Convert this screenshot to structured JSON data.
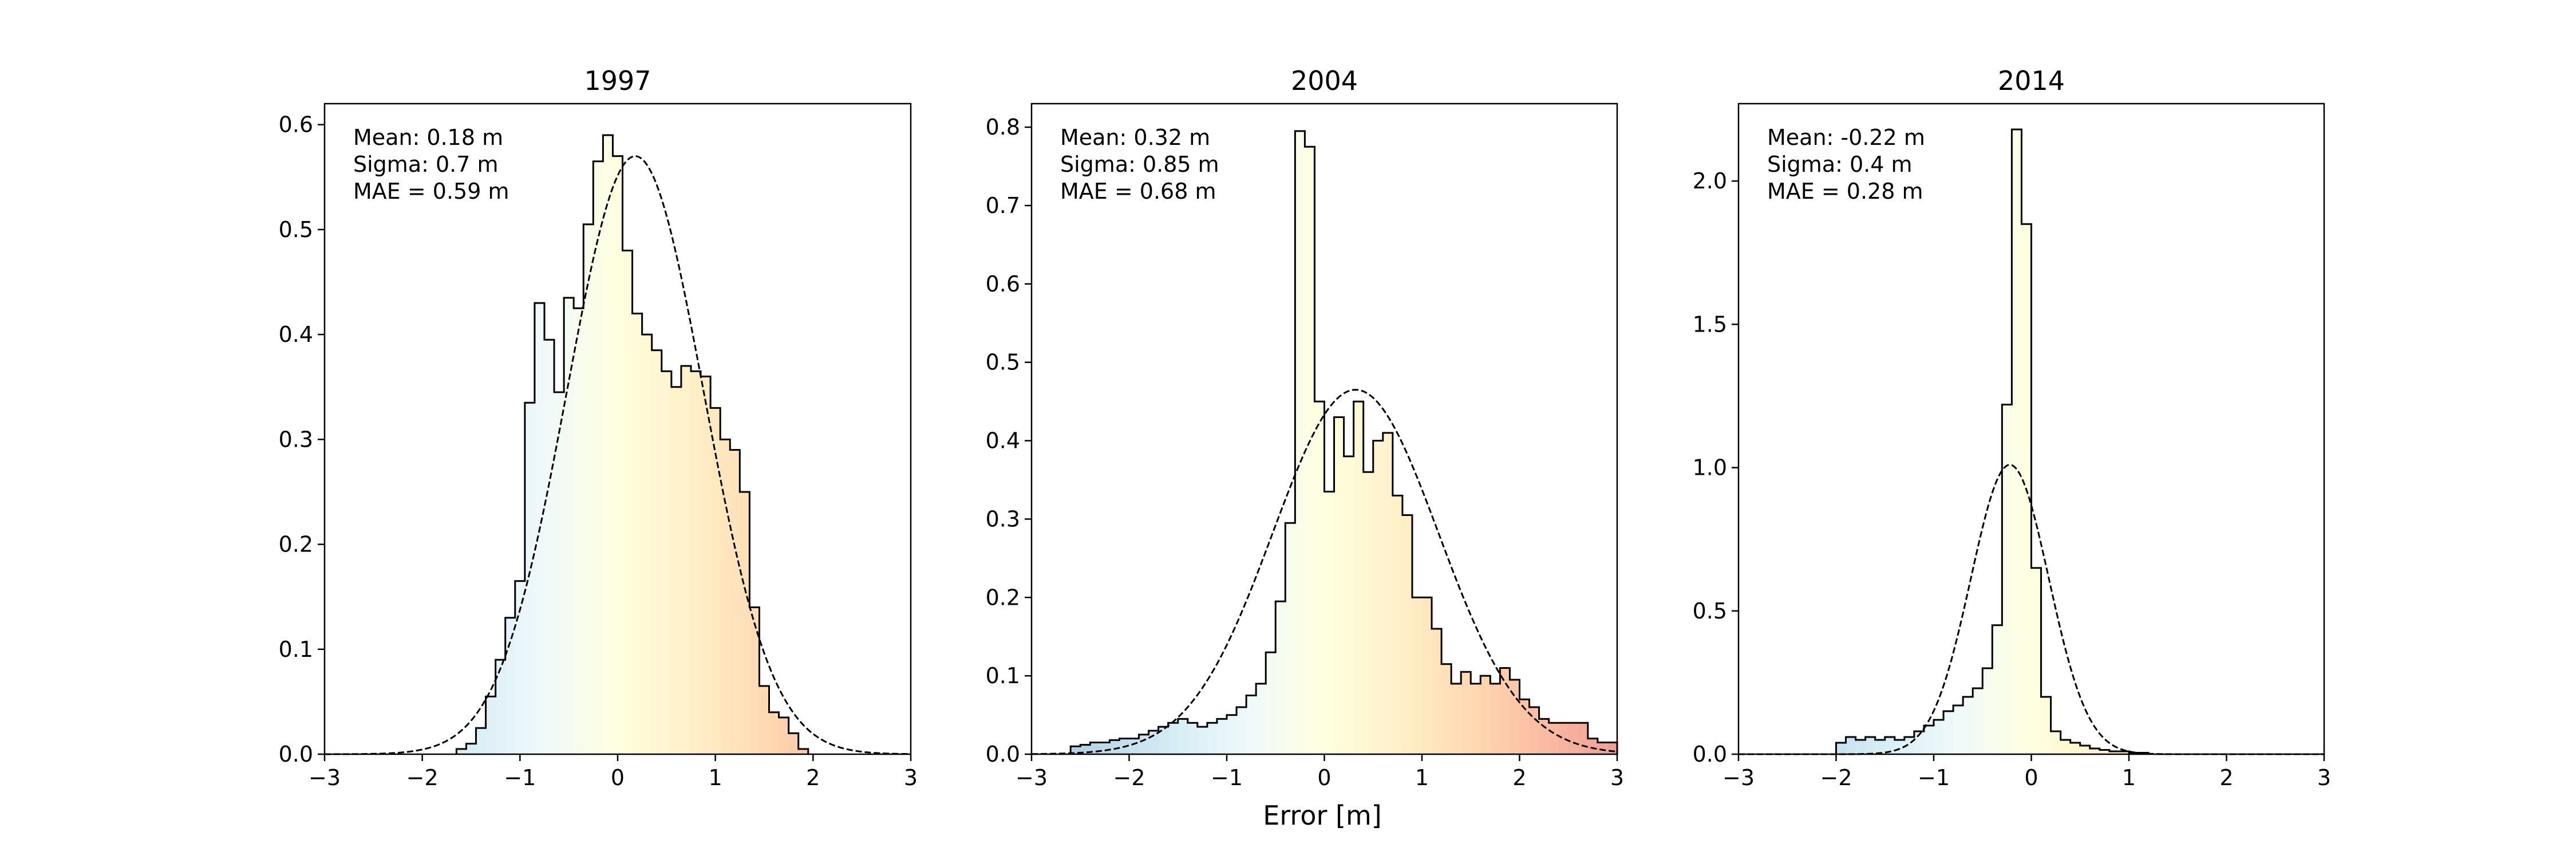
{
  "chart_data": {
    "type": "histogram",
    "xlabel": "Error [m]",
    "grid": false,
    "xlim": [
      -3,
      3
    ],
    "xticks": [
      -3,
      -2,
      -1,
      0,
      1,
      2,
      3
    ],
    "fill_colormap": "RdYlBu_r (blue for negative error, yellow near zero, red for positive error)",
    "outline_color": "#000000",
    "fit_curve_style": "dashed black line (normal fit)",
    "panels": [
      {
        "title": "1997",
        "stats": [
          "Mean: 0.18 m",
          "Sigma: 0.7 m",
          "MAE = 0.59 m"
        ],
        "ylim": [
          0,
          0.62
        ],
        "yticks": [
          "0.0",
          "0.1",
          "0.2",
          "0.3",
          "0.4",
          "0.5",
          "0.6"
        ],
        "bin_edges": [
          -1.65,
          -1.55,
          -1.45,
          -1.35,
          -1.25,
          -1.15,
          -1.05,
          -0.95,
          -0.85,
          -0.75,
          -0.65,
          -0.55,
          -0.45,
          -0.35,
          -0.25,
          -0.15,
          -0.05,
          0.05,
          0.15,
          0.25,
          0.35,
          0.45,
          0.55,
          0.65,
          0.75,
          0.85,
          0.95,
          1.05,
          1.15,
          1.25,
          1.35,
          1.45,
          1.55,
          1.65,
          1.75,
          1.85,
          1.95
        ],
        "values": [
          0.005,
          0.01,
          0.025,
          0.055,
          0.09,
          0.13,
          0.165,
          0.335,
          0.43,
          0.395,
          0.345,
          0.435,
          0.425,
          0.505,
          0.565,
          0.59,
          0.57,
          0.48,
          0.42,
          0.4,
          0.385,
          0.365,
          0.35,
          0.37,
          0.365,
          0.36,
          0.33,
          0.3,
          0.29,
          0.25,
          0.14,
          0.065,
          0.04,
          0.035,
          0.02,
          0.005
        ],
        "fit": {
          "mean": 0.18,
          "peak": 0.57,
          "sigma": 0.7
        }
      },
      {
        "title": "2004",
        "stats": [
          "Mean: 0.32 m",
          "Sigma: 0.85 m",
          "MAE = 0.68 m"
        ],
        "ylim": [
          0,
          0.83
        ],
        "yticks": [
          "0.0",
          "0.1",
          "0.2",
          "0.3",
          "0.4",
          "0.5",
          "0.6",
          "0.7",
          "0.8"
        ],
        "bin_edges": [
          -2.6,
          -2.5,
          -2.4,
          -2.3,
          -2.2,
          -2.1,
          -2.0,
          -1.9,
          -1.8,
          -1.7,
          -1.6,
          -1.5,
          -1.4,
          -1.3,
          -1.2,
          -1.1,
          -1.0,
          -0.9,
          -0.8,
          -0.7,
          -0.6,
          -0.5,
          -0.4,
          -0.3,
          -0.2,
          -0.1,
          0.0,
          0.1,
          0.2,
          0.3,
          0.4,
          0.5,
          0.6,
          0.7,
          0.8,
          0.9,
          1.0,
          1.1,
          1.2,
          1.3,
          1.4,
          1.5,
          1.6,
          1.7,
          1.8,
          1.9,
          2.0,
          2.1,
          2.2,
          2.3,
          2.4,
          2.5,
          2.6,
          2.7,
          2.8,
          2.9,
          3.0
        ],
        "values": [
          0.01,
          0.012,
          0.015,
          0.015,
          0.018,
          0.02,
          0.02,
          0.025,
          0.03,
          0.035,
          0.04,
          0.045,
          0.04,
          0.035,
          0.04,
          0.045,
          0.05,
          0.06,
          0.075,
          0.09,
          0.13,
          0.195,
          0.295,
          0.795,
          0.775,
          0.45,
          0.335,
          0.43,
          0.38,
          0.45,
          0.36,
          0.4,
          0.41,
          0.33,
          0.305,
          0.2,
          0.2,
          0.16,
          0.115,
          0.09,
          0.105,
          0.09,
          0.1,
          0.09,
          0.11,
          0.095,
          0.07,
          0.06,
          0.045,
          0.04,
          0.04,
          0.04,
          0.04,
          0.02,
          0.015,
          0.015
        ],
        "fit": {
          "mean": 0.32,
          "peak": 0.465,
          "sigma": 0.85
        }
      },
      {
        "title": "2014",
        "stats": [
          "Mean: -0.22 m",
          "Sigma: 0.4 m",
          "MAE = 0.28 m"
        ],
        "ylim": [
          0,
          2.27
        ],
        "yticks": [
          "0.0",
          "0.5",
          "1.0",
          "1.5",
          "2.0"
        ],
        "bin_edges": [
          -2.0,
          -1.9,
          -1.8,
          -1.7,
          -1.6,
          -1.5,
          -1.4,
          -1.3,
          -1.2,
          -1.1,
          -1.0,
          -0.9,
          -0.8,
          -0.7,
          -0.6,
          -0.5,
          -0.4,
          -0.3,
          -0.2,
          -0.1,
          0.0,
          0.1,
          0.2,
          0.3,
          0.4,
          0.5,
          0.6,
          0.7,
          0.8,
          0.9,
          1.0,
          1.1,
          1.2
        ],
        "values": [
          0.04,
          0.06,
          0.05,
          0.06,
          0.05,
          0.06,
          0.05,
          0.06,
          0.08,
          0.1,
          0.12,
          0.15,
          0.17,
          0.2,
          0.23,
          0.3,
          0.45,
          1.22,
          2.18,
          1.85,
          0.65,
          0.2,
          0.08,
          0.05,
          0.04,
          0.03,
          0.02,
          0.015,
          0.01,
          0.01,
          0.005,
          0.005
        ],
        "fit": {
          "mean": -0.22,
          "peak": 1.01,
          "sigma": 0.4
        }
      }
    ]
  }
}
